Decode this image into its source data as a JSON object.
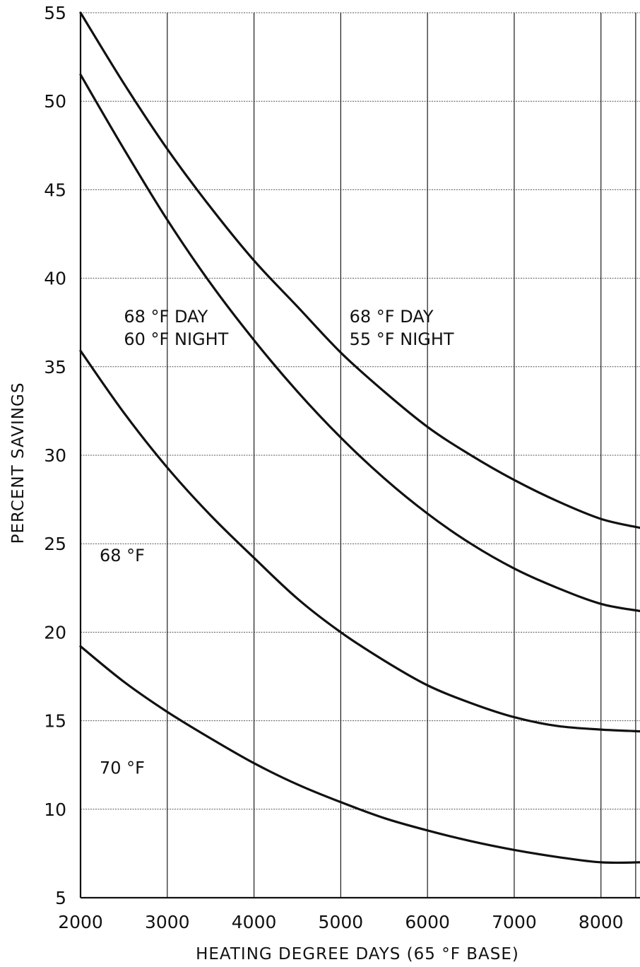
{
  "chart_data": {
    "type": "line",
    "title": "",
    "xlabel": "HEATING DEGREE DAYS (65 °F BASE)",
    "ylabel": "PERCENT SAVINGS",
    "xlim": [
      2000,
      8450
    ],
    "ylim": [
      5,
      55
    ],
    "x_ticks": [
      2000,
      3000,
      4000,
      5000,
      6000,
      7000,
      8000
    ],
    "x_tick_labels": [
      "2000",
      "3000",
      "4000",
      "5000",
      "6000",
      "7000",
      "8000"
    ],
    "y_ticks": [
      5,
      10,
      15,
      20,
      25,
      30,
      35,
      40,
      45,
      50,
      55
    ],
    "y_tick_labels": [
      "5",
      "10",
      "15",
      "20",
      "25",
      "30",
      "35",
      "40",
      "45",
      "50",
      "55"
    ],
    "grid": true,
    "series": [
      {
        "x": [
          2000,
          2500,
          3000,
          3500,
          4000,
          4500,
          5000,
          5500,
          6000,
          6500,
          7000,
          7500,
          8000,
          8450
        ],
        "y": [
          55.0,
          51.0,
          47.3,
          44.0,
          41.0,
          38.4,
          35.8,
          33.6,
          31.6,
          30.0,
          28.6,
          27.4,
          26.4,
          25.9
        ]
      },
      {
        "x": [
          2000,
          2500,
          3000,
          3500,
          4000,
          4500,
          5000,
          5500,
          6000,
          6500,
          7000,
          7500,
          8000,
          8450
        ],
        "y": [
          51.5,
          47.3,
          43.3,
          39.7,
          36.5,
          33.6,
          31.0,
          28.7,
          26.7,
          25.0,
          23.6,
          22.5,
          21.6,
          21.2
        ]
      },
      {
        "x": [
          2000,
          2500,
          3000,
          3500,
          4000,
          4500,
          5000,
          5500,
          6000,
          6500,
          7000,
          7500,
          8000,
          8450
        ],
        "y": [
          35.9,
          32.4,
          29.3,
          26.6,
          24.2,
          21.9,
          20.0,
          18.4,
          17.0,
          16.0,
          15.2,
          14.7,
          14.5,
          14.4
        ]
      },
      {
        "x": [
          2000,
          2500,
          3000,
          3500,
          4000,
          4500,
          5000,
          5500,
          6000,
          6500,
          7000,
          7500,
          8000,
          8450
        ],
        "y": [
          19.2,
          17.2,
          15.5,
          14.0,
          12.6,
          11.4,
          10.4,
          9.5,
          8.8,
          8.2,
          7.7,
          7.3,
          7.0,
          7.0
        ]
      }
    ],
    "annotations": [
      {
        "lines": [
          "68 °F DAY",
          "55 °F NIGHT"
        ],
        "x": 5100,
        "y": 37.5
      },
      {
        "lines": [
          "68 °F DAY",
          "60 °F NIGHT"
        ],
        "x": 2500,
        "y": 37.5
      },
      {
        "lines": [
          "68 °F"
        ],
        "x": 2220,
        "y": 24.0
      },
      {
        "lines": [
          "70 °F"
        ],
        "x": 2220,
        "y": 12.0
      }
    ]
  }
}
